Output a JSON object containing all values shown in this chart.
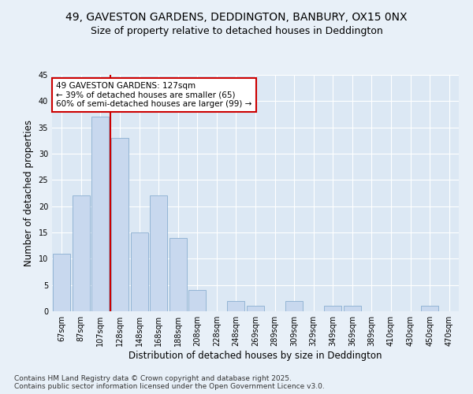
{
  "title_line1": "49, GAVESTON GARDENS, DEDDINGTON, BANBURY, OX15 0NX",
  "title_line2": "Size of property relative to detached houses in Deddington",
  "xlabel": "Distribution of detached houses by size in Deddington",
  "ylabel": "Number of detached properties",
  "bar_labels": [
    "67sqm",
    "87sqm",
    "107sqm",
    "128sqm",
    "148sqm",
    "168sqm",
    "188sqm",
    "208sqm",
    "228sqm",
    "248sqm",
    "269sqm",
    "289sqm",
    "309sqm",
    "329sqm",
    "349sqm",
    "369sqm",
    "389sqm",
    "410sqm",
    "430sqm",
    "450sqm",
    "470sqm"
  ],
  "bar_values": [
    11,
    22,
    37,
    33,
    15,
    22,
    14,
    4,
    0,
    2,
    1,
    0,
    2,
    0,
    1,
    1,
    0,
    0,
    0,
    1,
    0
  ],
  "bar_color": "#c8d8ee",
  "bar_edge_color": "#8aaed0",
  "vline_index": 3,
  "vline_color": "#cc0000",
  "annotation_text": "49 GAVESTON GARDENS: 127sqm\n← 39% of detached houses are smaller (65)\n60% of semi-detached houses are larger (99) →",
  "annotation_box_color": "white",
  "annotation_box_edge": "#cc0000",
  "ylim": [
    0,
    45
  ],
  "yticks": [
    0,
    5,
    10,
    15,
    20,
    25,
    30,
    35,
    40,
    45
  ],
  "footer_text": "Contains HM Land Registry data © Crown copyright and database right 2025.\nContains public sector information licensed under the Open Government Licence v3.0.",
  "bg_color": "#e8f0f8",
  "plot_bg_color": "#dce8f4",
  "grid_color": "#ffffff",
  "title_fontsize": 10,
  "subtitle_fontsize": 9,
  "axis_label_fontsize": 8.5,
  "tick_fontsize": 7,
  "annotation_fontsize": 7.5,
  "footer_fontsize": 6.5
}
